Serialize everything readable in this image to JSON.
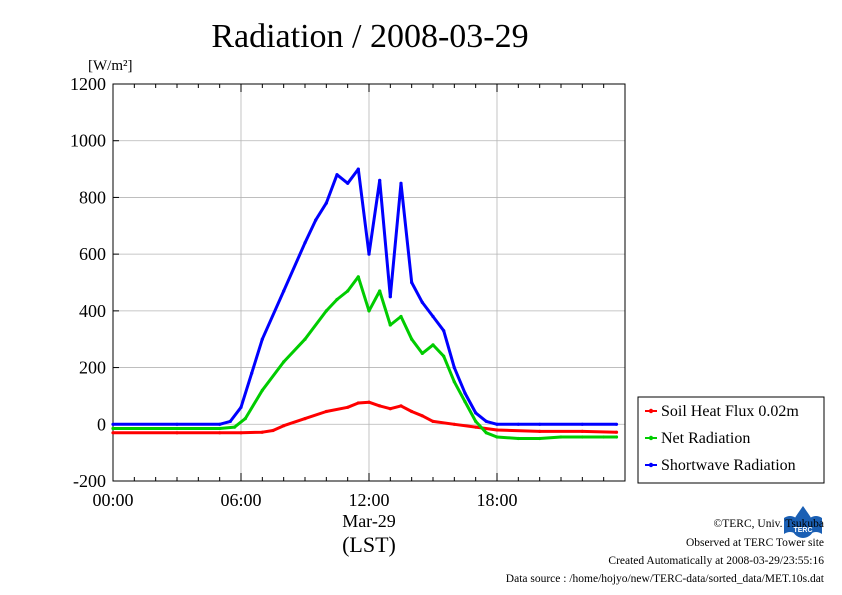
{
  "chart_data": {
    "type": "line",
    "title": "Radiation / 2008-03-29",
    "y_unit": "[W/m²]",
    "ylim": [
      -200,
      1200
    ],
    "y_ticks": [
      -200,
      0,
      200,
      400,
      600,
      800,
      1000,
      1200
    ],
    "xlim_hours": [
      0,
      24
    ],
    "x_ticks": [
      {
        "hour": 0,
        "label": "00:00"
      },
      {
        "hour": 6,
        "label": "06:00"
      },
      {
        "hour": 12,
        "label": "12:00"
      },
      {
        "hour": 18,
        "label": "18:00"
      }
    ],
    "x_sublabel": "Mar-29",
    "xlabel": "(LST)",
    "grid": true,
    "legend_position": "right",
    "series": [
      {
        "name": "Soil Heat Flux 0.02m",
        "color": "#ff0000",
        "x": [
          0,
          3,
          5,
          6,
          7,
          7.5,
          8,
          9,
          10,
          11,
          11.5,
          12,
          12.5,
          13,
          13.5,
          14,
          14.5,
          15,
          16,
          17,
          18,
          20,
          22,
          23.6
        ],
        "y": [
          -30,
          -30,
          -30,
          -30,
          -28,
          -22,
          -5,
          20,
          45,
          60,
          75,
          78,
          65,
          55,
          65,
          45,
          30,
          10,
          0,
          -10,
          -20,
          -25,
          -25,
          -28
        ]
      },
      {
        "name": "Net Radiation",
        "color": "#00cc00",
        "x": [
          0,
          3,
          5,
          5.7,
          6.2,
          7,
          8,
          9,
          10,
          10.5,
          11,
          11.5,
          12,
          12.5,
          13,
          13.5,
          14,
          14.5,
          15,
          15.5,
          16,
          16.5,
          17,
          17.5,
          18,
          19,
          20,
          21,
          22,
          23,
          23.6
        ],
        "y": [
          -15,
          -15,
          -15,
          -10,
          20,
          120,
          220,
          300,
          400,
          440,
          470,
          520,
          400,
          470,
          350,
          380,
          300,
          250,
          280,
          240,
          150,
          80,
          10,
          -30,
          -45,
          -50,
          -50,
          -45,
          -45,
          -45,
          -45
        ]
      },
      {
        "name": "Shortwave Radiation",
        "color": "#0000ff",
        "x": [
          0,
          3,
          5,
          5.5,
          6,
          6.5,
          7,
          8,
          9,
          9.5,
          10,
          10.5,
          11,
          11.5,
          12,
          12.5,
          13,
          13.5,
          14,
          14.5,
          15,
          15.5,
          16,
          16.5,
          17,
          17.5,
          18,
          19,
          20,
          22,
          23.6
        ],
        "y": [
          0,
          0,
          0,
          10,
          60,
          180,
          300,
          470,
          640,
          720,
          780,
          880,
          850,
          900,
          600,
          860,
          450,
          850,
          500,
          430,
          380,
          330,
          200,
          110,
          40,
          10,
          0,
          0,
          0,
          0,
          0
        ]
      }
    ]
  },
  "footer": {
    "copyright": "©TERC, Univ. Tsukuba",
    "observed": "Observed at TERC Tower site",
    "created": "Created Automatically at 2008-03-29/23:55:16",
    "source": "Data source : /home/hojyo/new/TERC-data/sorted_data/MET.10s.dat"
  },
  "logo": {
    "text": "TERC",
    "color": "#1a5fb4"
  }
}
